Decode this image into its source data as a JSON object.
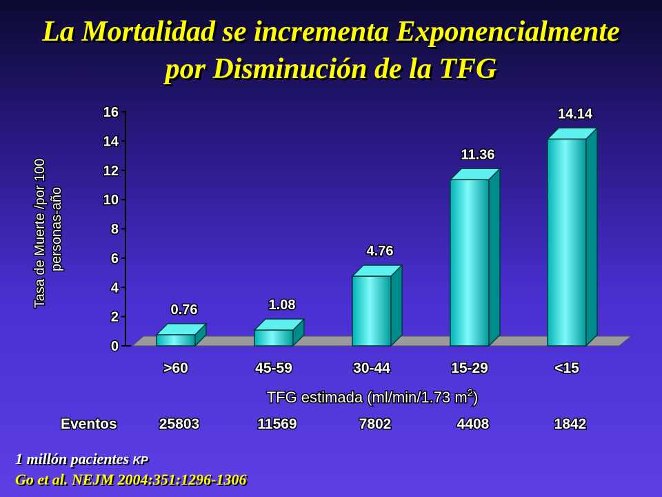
{
  "title_line1": "La Mortalidad se incrementa Exponencialmente",
  "title_line2": "por Disminución de la TFG",
  "chart_data": {
    "type": "bar",
    "categories": [
      ">60",
      "45-59",
      "30-44",
      "15-29",
      "<15"
    ],
    "values": [
      0.76,
      1.08,
      4.76,
      11.36,
      14.14
    ],
    "value_labels": [
      "0.76",
      "1.08",
      "4.76",
      "11.36",
      "14.14"
    ],
    "ylabel_line1": "Tasa de Muerte /por 100",
    "ylabel_line2": "personas-año",
    "xlabel": "TFG estimada (ml/min/1.73 m",
    "xlabel_sup": "2",
    "xlabel_end": ")",
    "ylim": [
      0,
      16
    ],
    "yticks": [
      0,
      2,
      4,
      6,
      8,
      10,
      12,
      14,
      16
    ],
    "bar_color": "#00dcdc",
    "events_label": "Eventos",
    "events": [
      "25803",
      "11569",
      "7802",
      "4408",
      "1842"
    ]
  },
  "footnote_line1": "1 millón pacientes",
  "footnote_kp": "KP",
  "footnote_line2": "Go et al. NEJM 2004:351:1296-1306",
  "colors": {
    "title": "#ffff00",
    "text": "#ffffff",
    "bar": "#00dcdc",
    "floor": "#9a9a9a"
  }
}
